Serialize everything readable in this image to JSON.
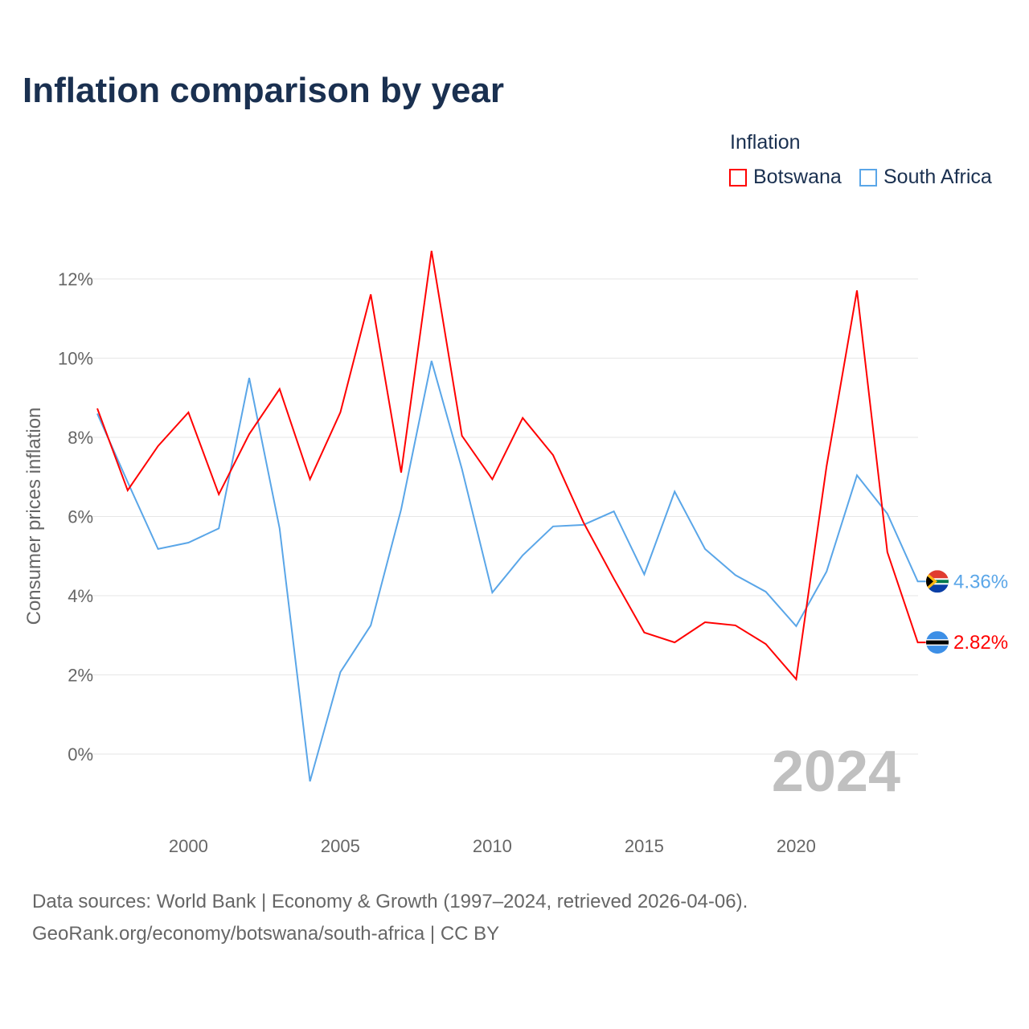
{
  "title": "Inflation comparison by year",
  "legend": {
    "title": "Inflation",
    "items": [
      {
        "name": "Botswana",
        "color": "#ff0000"
      },
      {
        "name": "South Africa",
        "color": "#5aa6e8"
      }
    ]
  },
  "footer": {
    "line1": "Data sources: World Bank | Economy & Growth (1997–2024, retrieved 2026-04-06).",
    "line2": "GeoRank.org/economy/botswana/south-africa | CC BY"
  },
  "chart_data": {
    "type": "line",
    "title": "Inflation comparison by year",
    "ylabel": "Consumer prices inflation",
    "xlabel": "",
    "year_watermark": "2024",
    "x": [
      1997,
      1998,
      1999,
      2000,
      2001,
      2002,
      2003,
      2004,
      2005,
      2006,
      2007,
      2008,
      2009,
      2010,
      2011,
      2012,
      2013,
      2014,
      2015,
      2016,
      2017,
      2018,
      2019,
      2020,
      2021,
      2022,
      2023,
      2024
    ],
    "xticks": [
      2000,
      2005,
      2010,
      2015,
      2020
    ],
    "yticks": [
      0,
      2,
      4,
      6,
      8,
      10,
      12
    ],
    "ytick_labels": [
      "0%",
      "2%",
      "4%",
      "6%",
      "8%",
      "10%",
      "12%"
    ],
    "ylim": [
      -1.5,
      13
    ],
    "grid": true,
    "series": [
      {
        "name": "Botswana",
        "color": "#ff0000",
        "end_label": "2.82%",
        "values": [
          8.73,
          6.66,
          7.78,
          8.63,
          6.56,
          8.08,
          9.22,
          6.94,
          8.63,
          11.61,
          7.11,
          12.71,
          8.04,
          6.94,
          8.49,
          7.55,
          5.85,
          4.43,
          3.07,
          2.82,
          3.33,
          3.25,
          2.78,
          1.89,
          7.27,
          11.71,
          5.1,
          2.82
        ]
      },
      {
        "name": "South Africa",
        "color": "#5aa6e8",
        "end_label": "4.36%",
        "values": [
          8.6,
          6.87,
          5.18,
          5.34,
          5.7,
          9.5,
          5.7,
          -0.69,
          2.07,
          3.25,
          6.18,
          9.93,
          7.2,
          4.08,
          5.02,
          5.75,
          5.79,
          6.13,
          4.54,
          6.63,
          5.18,
          4.52,
          4.1,
          3.23,
          4.61,
          7.04,
          6.07,
          4.36
        ]
      }
    ]
  }
}
